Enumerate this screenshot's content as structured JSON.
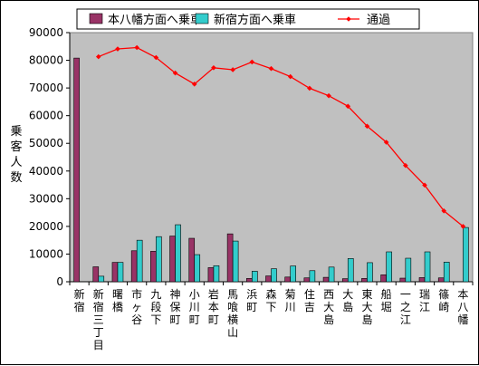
{
  "chart_data": {
    "type": "bar",
    "title": "",
    "xlabel": "",
    "ylabel": "乗客人数",
    "ylim": [
      0,
      90000
    ],
    "yticks": [
      0,
      10000,
      20000,
      30000,
      40000,
      50000,
      60000,
      70000,
      80000,
      90000
    ],
    "grid": false,
    "legend_position": "top",
    "categories": [
      "新宿",
      "新宿三丁目",
      "曙橋",
      "市ヶ谷",
      "九段下",
      "神保町",
      "小川町",
      "岩本町",
      "馬喰横山",
      "浜町",
      "森下",
      "菊川",
      "住吉",
      "西大島",
      "大島",
      "東大島",
      "船堀",
      "一之江",
      "瑞江",
      "篠崎",
      "本八幡"
    ],
    "series": [
      {
        "name": "本八幡方面へ乗車",
        "kind": "bar",
        "color": "#993366",
        "values": [
          80800,
          5400,
          7000,
          11200,
          11000,
          16500,
          15700,
          5100,
          17300,
          1200,
          2100,
          1700,
          1400,
          1600,
          1100,
          1200,
          2500,
          1300,
          1500,
          1400,
          0
        ]
      },
      {
        "name": "新宿方面へ乗車",
        "kind": "bar",
        "color": "#33cccc",
        "values": [
          0,
          2000,
          7000,
          15000,
          16300,
          20600,
          9800,
          5800,
          14700,
          3800,
          4700,
          5700,
          4000,
          5300,
          8400,
          6900,
          10800,
          8500,
          10800,
          7100,
          19600
        ]
      },
      {
        "name": "通過",
        "kind": "line",
        "color": "#ff0000",
        "values": [
          null,
          81300,
          84100,
          84600,
          81000,
          75400,
          71400,
          77300,
          76600,
          79400,
          77000,
          74100,
          69900,
          67200,
          63400,
          56200,
          50400,
          42000,
          34900,
          25600,
          20000
        ]
      }
    ]
  }
}
